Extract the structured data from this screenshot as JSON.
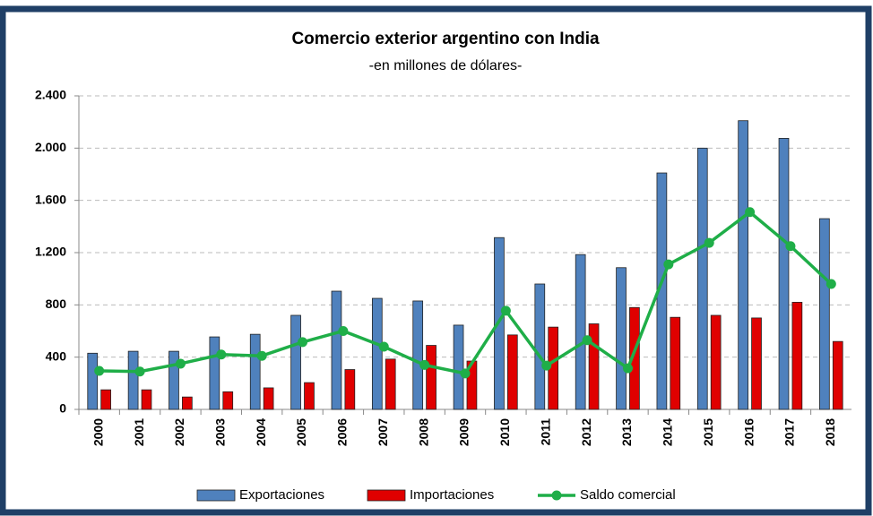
{
  "chart_data": {
    "type": "bar",
    "title": "Comercio exterior argentino con India",
    "subtitle": "-en millones de dólares-",
    "categories": [
      "2000",
      "2001",
      "2002",
      "2003",
      "2004",
      "2005",
      "2006",
      "2007",
      "2008",
      "2009",
      "2010",
      "2011",
      "2012",
      "2013",
      "2014",
      "2015",
      "2016",
      "2017",
      "2018"
    ],
    "series": [
      {
        "name": "Exportaciones",
        "type": "bar",
        "color": "#4f81bd",
        "values": [
          430,
          445,
          445,
          555,
          575,
          720,
          905,
          850,
          830,
          645,
          1315,
          960,
          1185,
          1085,
          1810,
          2000,
          2210,
          2075,
          1460
        ]
      },
      {
        "name": "Importaciones",
        "type": "bar",
        "color": "#e00000",
        "values": [
          150,
          150,
          95,
          135,
          165,
          205,
          305,
          385,
          490,
          370,
          570,
          630,
          655,
          780,
          705,
          720,
          700,
          820,
          520
        ]
      },
      {
        "name": "Saldo comercial",
        "type": "line",
        "color": "#1fae48",
        "values": [
          295,
          290,
          350,
          420,
          410,
          515,
          600,
          480,
          340,
          275,
          755,
          335,
          530,
          315,
          1110,
          1275,
          1510,
          1250,
          960
        ]
      }
    ],
    "ylim": [
      0,
      2400
    ],
    "yticks": [
      0,
      400,
      800,
      {
        "value": 1200,
        "label": "1.200"
      },
      {
        "value": 1600,
        "label": "1.600"
      },
      {
        "value": 2000,
        "label": "2.000"
      },
      {
        "value": 2400,
        "label": "2.400"
      }
    ],
    "grid": true,
    "legend": "bottom"
  }
}
